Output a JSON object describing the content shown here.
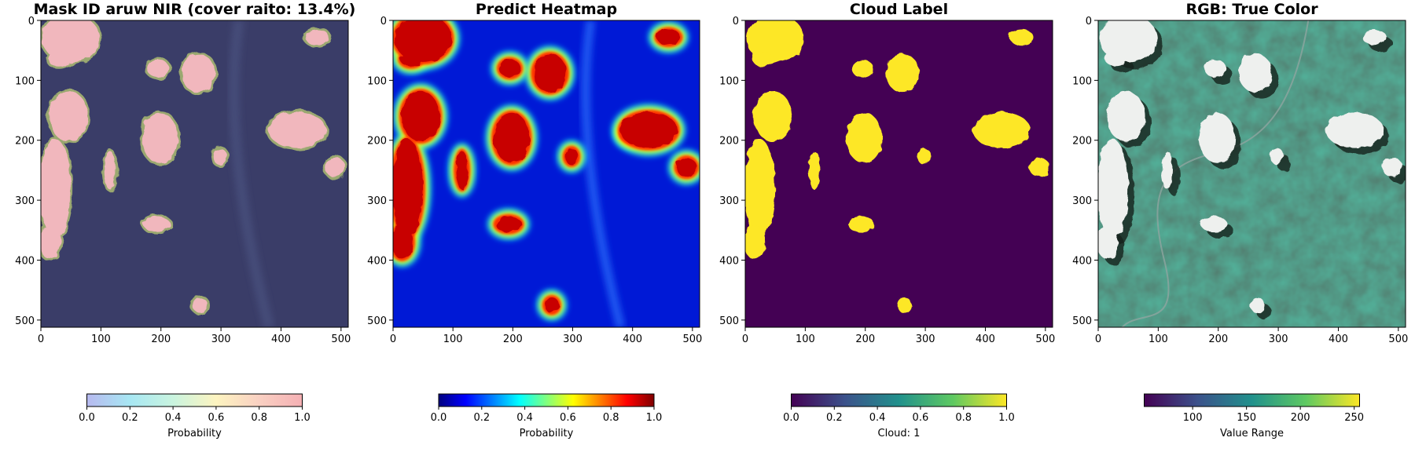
{
  "chart_data": [
    {
      "type": "heatmap",
      "title": "Mask ID aruw NIR (cover raito: 13.4%)",
      "colormap": "overlay",
      "x_ticks": [
        0,
        100,
        200,
        300,
        400,
        500
      ],
      "y_ticks": [
        0,
        100,
        200,
        300,
        400,
        500
      ],
      "xlim": [
        0,
        512
      ],
      "ylim": [
        512,
        0
      ],
      "colorbar": {
        "label": "Probability",
        "range": [
          0.0,
          1.0
        ],
        "ticks": [
          "0.0",
          "0.2",
          "0.4",
          "0.6",
          "0.8",
          "1.0"
        ],
        "colors": [
          "#b7b9ef",
          "#a7e7f3",
          "#c9f4df",
          "#fdf4c0",
          "#f9d0c2",
          "#f5b0b4"
        ]
      }
    },
    {
      "type": "heatmap",
      "title": "Predict Heatmap",
      "colormap": "jet",
      "x_ticks": [
        0,
        100,
        200,
        300,
        400,
        500
      ],
      "y_ticks": [
        0,
        100,
        200,
        300,
        400,
        500
      ],
      "xlim": [
        0,
        512
      ],
      "ylim": [
        512,
        0
      ],
      "colorbar": {
        "label": "Probability",
        "range": [
          0.0,
          1.0
        ],
        "ticks": [
          "0.0",
          "0.2",
          "0.4",
          "0.6",
          "0.8",
          "1.0"
        ],
        "colors": [
          "#00007f",
          "#0000ff",
          "#007fff",
          "#00ffff",
          "#7fff7f",
          "#ffff00",
          "#ff7f00",
          "#ff0000",
          "#7f0000"
        ]
      }
    },
    {
      "type": "heatmap",
      "title": "Cloud Label",
      "colormap": "viridis",
      "x_ticks": [
        0,
        100,
        200,
        300,
        400,
        500
      ],
      "y_ticks": [
        0,
        100,
        200,
        300,
        400,
        500
      ],
      "xlim": [
        0,
        512
      ],
      "ylim": [
        512,
        0
      ],
      "colorbar": {
        "label": "Cloud: 1",
        "range": [
          0.0,
          1.0
        ],
        "ticks": [
          "0.0",
          "0.2",
          "0.4",
          "0.6",
          "0.8",
          "1.0"
        ],
        "colors": [
          "#440154",
          "#3b528b",
          "#21918c",
          "#5ec962",
          "#fde725"
        ]
      }
    },
    {
      "type": "heatmap",
      "title": "RGB: True Color",
      "colormap": "rgb",
      "x_ticks": [
        0,
        100,
        200,
        300,
        400,
        500
      ],
      "y_ticks": [
        0,
        100,
        200,
        300,
        400,
        500
      ],
      "xlim": [
        0,
        512
      ],
      "ylim": [
        512,
        0
      ],
      "colorbar": {
        "label": "Value Range",
        "range": [
          55,
          255
        ],
        "ticks": [
          "100",
          "150",
          "200",
          "250"
        ],
        "colors": [
          "#440154",
          "#3b528b",
          "#21918c",
          "#5ec962",
          "#fde725"
        ]
      }
    }
  ],
  "clouds": [
    {
      "cx": 50,
      "cy": 30,
      "rx": 48,
      "ry": 40
    },
    {
      "cx": 30,
      "cy": 65,
      "rx": 18,
      "ry": 12
    },
    {
      "cx": 460,
      "cy": 28,
      "rx": 20,
      "ry": 13
    },
    {
      "cx": 195,
      "cy": 80,
      "rx": 18,
      "ry": 15
    },
    {
      "cx": 262,
      "cy": 88,
      "rx": 28,
      "ry": 32
    },
    {
      "cx": 46,
      "cy": 160,
      "rx": 32,
      "ry": 42
    },
    {
      "cx": 198,
      "cy": 196,
      "rx": 30,
      "ry": 42
    },
    {
      "cx": 427,
      "cy": 183,
      "rx": 48,
      "ry": 30
    },
    {
      "cx": 400,
      "cy": 190,
      "rx": 18,
      "ry": 12
    },
    {
      "cx": 298,
      "cy": 227,
      "rx": 11,
      "ry": 14
    },
    {
      "cx": 115,
      "cy": 250,
      "rx": 10,
      "ry": 32
    },
    {
      "cx": 490,
      "cy": 245,
      "rx": 17,
      "ry": 16
    },
    {
      "cx": 24,
      "cy": 280,
      "rx": 26,
      "ry": 82
    },
    {
      "cx": 15,
      "cy": 370,
      "rx": 18,
      "ry": 28
    },
    {
      "cx": 193,
      "cy": 340,
      "rx": 22,
      "ry": 13
    },
    {
      "cx": 265,
      "cy": 475,
      "rx": 12,
      "ry": 13
    }
  ]
}
